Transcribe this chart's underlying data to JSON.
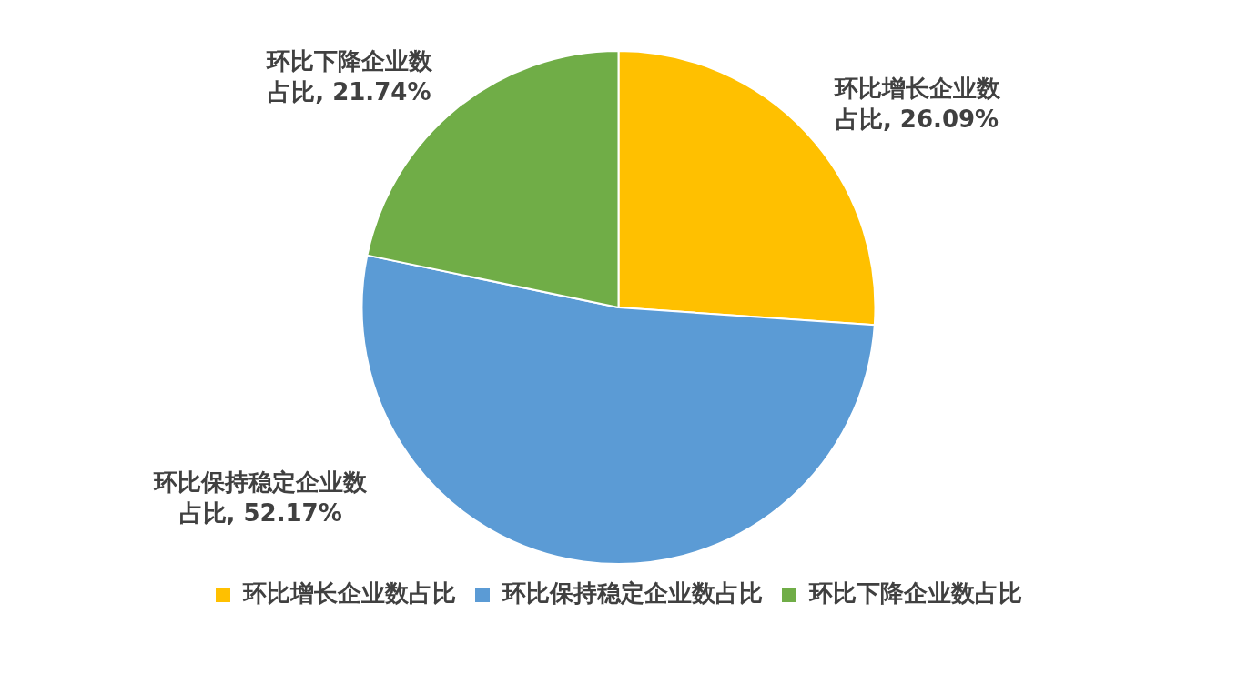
{
  "chart_data": {
    "type": "pie",
    "categories": [
      "环比增长企业数占比",
      "环比保持稳定企业数占比",
      "环比下降企业数占比"
    ],
    "values": [
      26.09,
      52.17,
      21.74
    ],
    "colors": [
      "#ffc000",
      "#5b9bd5",
      "#70ad47"
    ],
    "value_labels": [
      "环比增长企业数占比, 26.09%",
      "环比保持稳定企业数占比, 52.17%",
      "环比下降企业数占比, 21.74%"
    ],
    "legend": "bottom"
  }
}
